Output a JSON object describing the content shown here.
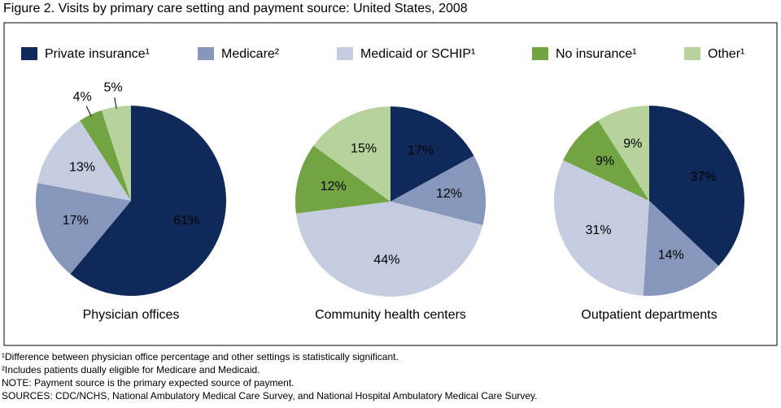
{
  "title": "Figure 2. Visits by primary care setting and payment source: United States, 2008",
  "legend": {
    "names": [
      "Private insurance¹",
      "Medicare²",
      "Medicaid or SCHIP¹",
      "No insurance¹",
      "Other¹"
    ],
    "colors": [
      "#0f2a5a",
      "#8797bb",
      "#c5cce0",
      "#72a444",
      "#b7d39b"
    ]
  },
  "chart_data": [
    {
      "type": "pie",
      "label": "Physician offices",
      "values": [
        61,
        17,
        13,
        4,
        5
      ],
      "value_labels": [
        "61%",
        "17%",
        "13%",
        "4%",
        "5%"
      ]
    },
    {
      "type": "pie",
      "label": "Community health centers",
      "values": [
        17,
        12,
        44,
        12,
        15
      ],
      "value_labels": [
        "17%",
        "12%",
        "44%",
        "12%",
        "15%"
      ]
    },
    {
      "type": "pie",
      "label": "Outpatient departments",
      "values": [
        37,
        14,
        31,
        9,
        9
      ],
      "value_labels": [
        "37%",
        "14%",
        "31%",
        "9%",
        "9%"
      ]
    }
  ],
  "notes": [
    "¹Difference  between physician office percentage and other settings is statistically significant.",
    "²Includes patients dually eligible for Medicare and Medicaid.",
    "NOTE: Payment source is the primary expected source of payment.",
    "SOURCES: CDC/NCHS, National Ambulatory Medical Care Survey, and National Hospital Ambulatory Medical Care Survey."
  ]
}
